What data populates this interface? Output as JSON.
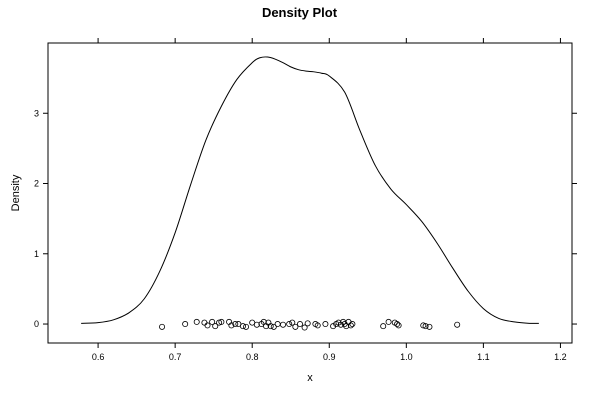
{
  "chart_data": {
    "type": "line",
    "title": "Density Plot",
    "xlabel": "x",
    "ylabel": "Density",
    "xlim": [
      0.535,
      1.215
    ],
    "ylim": [
      -0.27,
      4.0
    ],
    "x_ticks": [
      0.6,
      0.7,
      0.8,
      0.9,
      1.0,
      1.1,
      1.2
    ],
    "x_tick_labels": [
      "0.6",
      "0.7",
      "0.8",
      "0.9",
      "1.0",
      "1.1",
      "1.2"
    ],
    "y_ticks": [
      0,
      1,
      2,
      3
    ],
    "y_tick_labels": [
      "0",
      "1",
      "2",
      "3"
    ],
    "grid": false,
    "legend": "none",
    "line_color": "#000000",
    "point_color": "#000000",
    "density_curve": {
      "x": [
        0.578,
        0.6,
        0.62,
        0.64,
        0.66,
        0.68,
        0.7,
        0.72,
        0.74,
        0.76,
        0.78,
        0.8,
        0.81,
        0.82,
        0.83,
        0.84,
        0.85,
        0.86,
        0.87,
        0.88,
        0.89,
        0.9,
        0.92,
        0.94,
        0.96,
        0.98,
        1.0,
        1.02,
        1.04,
        1.06,
        1.08,
        1.1,
        1.12,
        1.14,
        1.16,
        1.172
      ],
      "y": [
        0.01,
        0.02,
        0.06,
        0.16,
        0.36,
        0.75,
        1.3,
        1.98,
        2.62,
        3.1,
        3.48,
        3.72,
        3.79,
        3.8,
        3.77,
        3.72,
        3.66,
        3.62,
        3.6,
        3.59,
        3.57,
        3.53,
        3.3,
        2.75,
        2.25,
        1.92,
        1.7,
        1.46,
        1.15,
        0.8,
        0.47,
        0.22,
        0.08,
        0.03,
        0.01,
        0.01
      ]
    },
    "rug_points": {
      "x": [
        0.683,
        0.713,
        0.728,
        0.738,
        0.742,
        0.748,
        0.752,
        0.757,
        0.76,
        0.77,
        0.773,
        0.778,
        0.782,
        0.788,
        0.792,
        0.8,
        0.806,
        0.812,
        0.815,
        0.818,
        0.821,
        0.824,
        0.828,
        0.833,
        0.84,
        0.848,
        0.852,
        0.856,
        0.862,
        0.868,
        0.872,
        0.882,
        0.885,
        0.895,
        0.905,
        0.909,
        0.912,
        0.915,
        0.918,
        0.92,
        0.922,
        0.925,
        0.928,
        0.93,
        0.97,
        0.977,
        0.985,
        0.988,
        0.99,
        1.022,
        1.025,
        1.03,
        1.066
      ],
      "y": [
        -0.04,
        0.0,
        0.03,
        0.02,
        -0.02,
        0.03,
        -0.03,
        0.02,
        0.03,
        0.03,
        -0.02,
        0.0,
        0.0,
        -0.03,
        -0.04,
        0.02,
        -0.01,
        0.0,
        0.03,
        -0.03,
        0.02,
        -0.03,
        -0.04,
        0.0,
        -0.01,
        0.0,
        0.02,
        -0.04,
        0.0,
        -0.05,
        0.01,
        0.0,
        -0.02,
        0.0,
        -0.03,
        0.0,
        0.02,
        -0.01,
        0.03,
        0.0,
        -0.03,
        0.03,
        -0.02,
        0.0,
        -0.03,
        0.03,
        0.02,
        0.0,
        -0.02,
        -0.02,
        -0.03,
        -0.04,
        -0.01
      ]
    }
  }
}
